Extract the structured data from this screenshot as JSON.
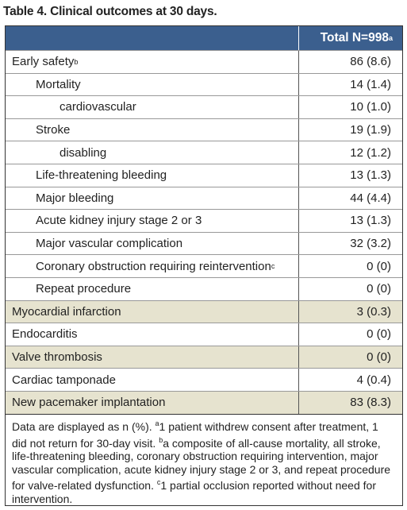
{
  "title": "Table 4. Clinical outcomes at 30 days.",
  "table": {
    "header": {
      "label": "Total N=998",
      "sup": "a"
    },
    "rows": [
      {
        "label": "Early safety",
        "sup": "b",
        "value": "86 (8.6)",
        "children": [
          {
            "label": "Mortality",
            "value": "14 (1.4)",
            "children": [
              {
                "label": "cardiovascular",
                "value": "10 (1.0)"
              }
            ]
          },
          {
            "label": "Stroke",
            "value": "19 (1.9)",
            "children": [
              {
                "label": "disabling",
                "value": "12 (1.2)"
              }
            ]
          },
          {
            "label": "Life-threatening bleeding",
            "value": "13 (1.3)"
          },
          {
            "label": "Major bleeding",
            "value": "44 (4.4)"
          },
          {
            "label": "Acute kidney injury stage 2 or 3",
            "value": "13 (1.3)"
          },
          {
            "label": "Major vascular complication",
            "value": "32 (3.2)"
          },
          {
            "label": "Coronary obstruction requiring reintervention",
            "sup": "c",
            "value": "0 (0)"
          },
          {
            "label": "Repeat procedure",
            "value": "0 (0)"
          }
        ]
      },
      {
        "label": "Myocardial infarction",
        "value": "3 (0.3)"
      },
      {
        "label": "Endocarditis",
        "value": "0 (0)"
      },
      {
        "label": "Valve thrombosis",
        "value": "0 (0)"
      },
      {
        "label": "Cardiac tamponade",
        "value": "4 (0.4)"
      },
      {
        "label": "New pacemaker implantation",
        "value": "83 (8.3)"
      }
    ]
  },
  "notes": [
    {
      "text": "Data are displayed as n (%)."
    },
    {
      "mark": "a",
      "text": "1 patient withdrew consent after treatment, 1 did not return for 30-day visit."
    },
    {
      "mark": "b",
      "text": "a composite of all-cause mortality, all stroke, life-threatening bleeding, coronary obstruction requiring intervention, major vascular complication, acute kidney injury stage 2 or 3, and repeat procedure for valve-related dysfunction."
    },
    {
      "mark": "c",
      "text": "1 partial occlusion reported without need for intervention."
    }
  ]
}
